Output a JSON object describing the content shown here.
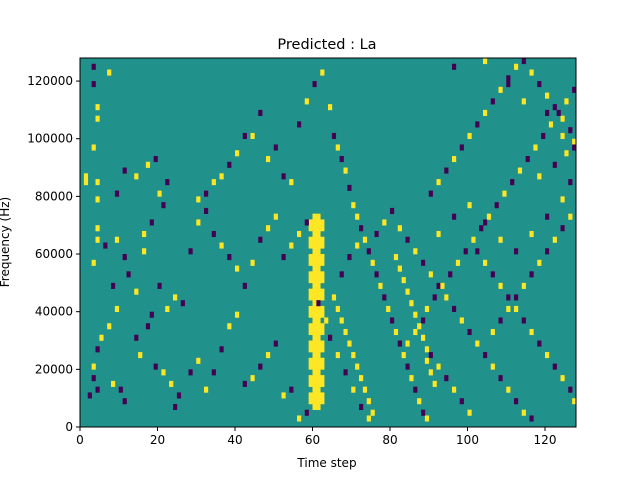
{
  "chart_data": {
    "type": "heatmap",
    "title": "Predicted : La",
    "xlabel": "Time step",
    "ylabel": "Frequency (Hz)",
    "xlim": [
      0,
      128
    ],
    "ylim": [
      0,
      128000
    ],
    "x_ticks": [
      0,
      20,
      40,
      60,
      80,
      100,
      120
    ],
    "y_ticks": [
      0,
      20000,
      40000,
      60000,
      80000,
      100000,
      120000
    ],
    "x_tick_labels": [
      "0",
      "20",
      "40",
      "60",
      "80",
      "100",
      "120"
    ],
    "y_tick_labels": [
      "0",
      "20000",
      "40000",
      "60000",
      "80000",
      "100000",
      "120000"
    ],
    "grid": false,
    "colors": {
      "background": "#21918c",
      "low": "#440154",
      "high": "#fde725"
    },
    "value_levels": [
      -1,
      0,
      1
    ],
    "background_value": 0,
    "row_height_hz": 2000,
    "bright_band": {
      "x_start": 59,
      "x_end": 63,
      "y_min": 6000,
      "y_max": 74000,
      "value": 1
    },
    "cells": [
      [
        3,
        124000,
        -1
      ],
      [
        3,
        118000,
        -1
      ],
      [
        4,
        110000,
        1
      ],
      [
        4,
        106000,
        1
      ],
      [
        7,
        122000,
        1
      ],
      [
        3,
        96000,
        1
      ],
      [
        1,
        86000,
        1
      ],
      [
        1,
        84000,
        1
      ],
      [
        4,
        84000,
        1
      ],
      [
        4,
        78000,
        1
      ],
      [
        9,
        80000,
        -1
      ],
      [
        11,
        88000,
        -1
      ],
      [
        14,
        86000,
        1
      ],
      [
        17,
        90000,
        1
      ],
      [
        19,
        92000,
        -1
      ],
      [
        20,
        80000,
        1
      ],
      [
        18,
        70000,
        -1
      ],
      [
        21,
        76000,
        -1
      ],
      [
        22,
        84000,
        -1
      ],
      [
        4,
        68000,
        1
      ],
      [
        4,
        64000,
        1
      ],
      [
        3,
        56000,
        1
      ],
      [
        6,
        62000,
        -1
      ],
      [
        9,
        64000,
        1
      ],
      [
        11,
        58000,
        -1
      ],
      [
        16,
        66000,
        1
      ],
      [
        16,
        60000,
        1
      ],
      [
        8,
        48000,
        -1
      ],
      [
        12,
        52000,
        -1
      ],
      [
        14,
        46000,
        1
      ],
      [
        20,
        48000,
        -1
      ],
      [
        24,
        44000,
        1
      ],
      [
        26,
        42000,
        -1
      ],
      [
        22,
        40000,
        1
      ],
      [
        9,
        40000,
        1
      ],
      [
        7,
        34000,
        1
      ],
      [
        5,
        30000,
        1
      ],
      [
        4,
        26000,
        -1
      ],
      [
        3,
        20000,
        1
      ],
      [
        3,
        16000,
        -1
      ],
      [
        4,
        12000,
        -1
      ],
      [
        2,
        10000,
        -1
      ],
      [
        8,
        14000,
        1
      ],
      [
        10,
        12000,
        -1
      ],
      [
        11,
        8000,
        -1
      ],
      [
        14,
        30000,
        -1
      ],
      [
        15,
        24000,
        1
      ],
      [
        17,
        34000,
        -1
      ],
      [
        18,
        38000,
        -1
      ],
      [
        19,
        20000,
        -1
      ],
      [
        21,
        18000,
        1
      ],
      [
        23,
        14000,
        1
      ],
      [
        25,
        10000,
        -1
      ],
      [
        24,
        6000,
        -1
      ],
      [
        28,
        18000,
        -1
      ],
      [
        30,
        22000,
        1
      ],
      [
        32,
        12000,
        1
      ],
      [
        34,
        18000,
        -1
      ],
      [
        36,
        26000,
        -1
      ],
      [
        38,
        34000,
        1
      ],
      [
        40,
        38000,
        1
      ],
      [
        42,
        14000,
        -1
      ],
      [
        44,
        16000,
        1
      ],
      [
        46,
        20000,
        -1
      ],
      [
        48,
        24000,
        1
      ],
      [
        50,
        28000,
        -1
      ],
      [
        52,
        10000,
        1
      ],
      [
        54,
        12000,
        -1
      ],
      [
        56,
        2000,
        1
      ],
      [
        58,
        4000,
        -1
      ],
      [
        28,
        60000,
        -1
      ],
      [
        30,
        70000,
        1
      ],
      [
        32,
        74000,
        -1
      ],
      [
        34,
        66000,
        -1
      ],
      [
        36,
        62000,
        1
      ],
      [
        38,
        58000,
        -1
      ],
      [
        40,
        54000,
        1
      ],
      [
        42,
        48000,
        -1
      ],
      [
        44,
        56000,
        1
      ],
      [
        46,
        64000,
        -1
      ],
      [
        48,
        68000,
        1
      ],
      [
        50,
        72000,
        1
      ],
      [
        52,
        58000,
        -1
      ],
      [
        54,
        62000,
        1
      ],
      [
        56,
        66000,
        1
      ],
      [
        58,
        70000,
        -1
      ],
      [
        30,
        78000,
        1
      ],
      [
        32,
        80000,
        -1
      ],
      [
        34,
        84000,
        1
      ],
      [
        36,
        86000,
        1
      ],
      [
        38,
        90000,
        -1
      ],
      [
        40,
        94000,
        1
      ],
      [
        42,
        100000,
        -1
      ],
      [
        44,
        100000,
        1
      ],
      [
        46,
        108000,
        -1
      ],
      [
        48,
        92000,
        1
      ],
      [
        50,
        96000,
        -1
      ],
      [
        52,
        86000,
        -1
      ],
      [
        54,
        84000,
        1
      ],
      [
        56,
        104000,
        -1
      ],
      [
        58,
        112000,
        1
      ],
      [
        60,
        118000,
        -1
      ],
      [
        62,
        122000,
        1
      ],
      [
        64,
        110000,
        1
      ],
      [
        65,
        100000,
        -1
      ],
      [
        66,
        96000,
        1
      ],
      [
        67,
        92000,
        -1
      ],
      [
        68,
        88000,
        1
      ],
      [
        69,
        82000,
        -1
      ],
      [
        70,
        76000,
        1
      ],
      [
        71,
        72000,
        1
      ],
      [
        72,
        68000,
        -1
      ],
      [
        73,
        64000,
        1
      ],
      [
        74,
        60000,
        -1
      ],
      [
        75,
        56000,
        1
      ],
      [
        76,
        52000,
        -1
      ],
      [
        77,
        48000,
        1
      ],
      [
        78,
        44000,
        -1
      ],
      [
        79,
        40000,
        1
      ],
      [
        80,
        36000,
        -1
      ],
      [
        81,
        32000,
        1
      ],
      [
        82,
        28000,
        -1
      ],
      [
        83,
        24000,
        1
      ],
      [
        84,
        20000,
        -1
      ],
      [
        85,
        16000,
        1
      ],
      [
        86,
        12000,
        -1
      ],
      [
        87,
        8000,
        1
      ],
      [
        88,
        4000,
        -1
      ],
      [
        89,
        2000,
        1
      ],
      [
        60,
        48000,
        1
      ],
      [
        61,
        42000,
        -1
      ],
      [
        63,
        36000,
        1
      ],
      [
        64,
        30000,
        -1
      ],
      [
        66,
        24000,
        1
      ],
      [
        68,
        18000,
        -1
      ],
      [
        70,
        12000,
        1
      ],
      [
        72,
        6000,
        -1
      ],
      [
        74,
        2000,
        1
      ],
      [
        67,
        52000,
        -1
      ],
      [
        69,
        58000,
        -1
      ],
      [
        71,
        62000,
        1
      ],
      [
        76,
        66000,
        -1
      ],
      [
        78,
        70000,
        1
      ],
      [
        80,
        74000,
        -1
      ],
      [
        82,
        68000,
        1
      ],
      [
        84,
        64000,
        -1
      ],
      [
        86,
        60000,
        1
      ],
      [
        88,
        56000,
        -1
      ],
      [
        90,
        52000,
        1
      ],
      [
        92,
        48000,
        -1
      ],
      [
        94,
        44000,
        1
      ],
      [
        96,
        40000,
        -1
      ],
      [
        98,
        36000,
        1
      ],
      [
        100,
        32000,
        -1
      ],
      [
        102,
        28000,
        1
      ],
      [
        104,
        24000,
        -1
      ],
      [
        106,
        20000,
        1
      ],
      [
        108,
        16000,
        -1
      ],
      [
        110,
        12000,
        1
      ],
      [
        112,
        8000,
        -1
      ],
      [
        114,
        4000,
        1
      ],
      [
        116,
        2000,
        -1
      ],
      [
        90,
        24000,
        -1
      ],
      [
        92,
        20000,
        1
      ],
      [
        94,
        16000,
        -1
      ],
      [
        96,
        12000,
        1
      ],
      [
        98,
        8000,
        -1
      ],
      [
        100,
        4000,
        1
      ],
      [
        102,
        60000,
        -1
      ],
      [
        104,
        56000,
        1
      ],
      [
        106,
        52000,
        -1
      ],
      [
        108,
        48000,
        1
      ],
      [
        110,
        44000,
        -1
      ],
      [
        112,
        40000,
        1
      ],
      [
        114,
        36000,
        -1
      ],
      [
        116,
        32000,
        1
      ],
      [
        118,
        28000,
        -1
      ],
      [
        120,
        24000,
        1
      ],
      [
        122,
        20000,
        -1
      ],
      [
        124,
        16000,
        1
      ],
      [
        126,
        12000,
        -1
      ],
      [
        127,
        8000,
        1
      ],
      [
        90,
        80000,
        -1
      ],
      [
        92,
        84000,
        1
      ],
      [
        94,
        88000,
        -1
      ],
      [
        96,
        92000,
        1
      ],
      [
        98,
        96000,
        -1
      ],
      [
        100,
        100000,
        1
      ],
      [
        102,
        104000,
        -1
      ],
      [
        104,
        108000,
        1
      ],
      [
        106,
        112000,
        -1
      ],
      [
        108,
        116000,
        1
      ],
      [
        110,
        120000,
        -1
      ],
      [
        112,
        124000,
        1
      ],
      [
        114,
        126000,
        -1
      ],
      [
        116,
        122000,
        1
      ],
      [
        118,
        118000,
        -1
      ],
      [
        120,
        114000,
        1
      ],
      [
        122,
        110000,
        -1
      ],
      [
        124,
        106000,
        1
      ],
      [
        126,
        102000,
        -1
      ],
      [
        127,
        98000,
        1
      ],
      [
        92,
        66000,
        1
      ],
      [
        96,
        72000,
        -1
      ],
      [
        100,
        76000,
        1
      ],
      [
        104,
        70000,
        -1
      ],
      [
        108,
        64000,
        1
      ],
      [
        112,
        60000,
        -1
      ],
      [
        116,
        66000,
        1
      ],
      [
        120,
        72000,
        -1
      ],
      [
        124,
        78000,
        1
      ],
      [
        126,
        84000,
        -1
      ],
      [
        118,
        86000,
        1
      ],
      [
        122,
        90000,
        -1
      ],
      [
        125,
        94000,
        1
      ],
      [
        96,
        124000,
        -1
      ],
      [
        104,
        126000,
        1
      ],
      [
        110,
        118000,
        -1
      ],
      [
        114,
        112000,
        1
      ],
      [
        120,
        108000,
        -1
      ],
      [
        124,
        100000,
        1
      ],
      [
        127,
        96000,
        -1
      ],
      [
        106,
        32000,
        1
      ],
      [
        108,
        36000,
        -1
      ],
      [
        110,
        40000,
        1
      ],
      [
        112,
        44000,
        -1
      ],
      [
        114,
        48000,
        1
      ],
      [
        116,
        52000,
        -1
      ],
      [
        118,
        56000,
        1
      ],
      [
        120,
        60000,
        -1
      ],
      [
        122,
        64000,
        1
      ],
      [
        124,
        68000,
        -1
      ],
      [
        126,
        72000,
        1
      ],
      [
        84,
        28000,
        1
      ],
      [
        86,
        32000,
        1
      ],
      [
        88,
        36000,
        -1
      ],
      [
        89,
        40000,
        1
      ],
      [
        91,
        44000,
        -1
      ],
      [
        93,
        48000,
        1
      ],
      [
        95,
        52000,
        -1
      ],
      [
        97,
        56000,
        1
      ],
      [
        99,
        60000,
        -1
      ],
      [
        101,
        64000,
        1
      ],
      [
        103,
        68000,
        -1
      ],
      [
        105,
        72000,
        1
      ],
      [
        107,
        76000,
        -1
      ],
      [
        109,
        80000,
        1
      ],
      [
        111,
        84000,
        -1
      ],
      [
        113,
        88000,
        1
      ],
      [
        115,
        92000,
        -1
      ],
      [
        117,
        96000,
        1
      ],
      [
        119,
        100000,
        -1
      ],
      [
        121,
        104000,
        1
      ],
      [
        123,
        108000,
        -1
      ],
      [
        125,
        112000,
        1
      ],
      [
        127,
        116000,
        -1
      ],
      [
        89,
        26000,
        1
      ],
      [
        89,
        22000,
        1
      ],
      [
        90,
        18000,
        1
      ],
      [
        91,
        14000,
        1
      ],
      [
        88,
        30000,
        1
      ],
      [
        87,
        34000,
        1
      ],
      [
        86,
        38000,
        1
      ],
      [
        85,
        42000,
        1
      ],
      [
        84,
        46000,
        1
      ],
      [
        83,
        50000,
        1
      ],
      [
        82,
        54000,
        1
      ],
      [
        81,
        58000,
        1
      ],
      [
        65,
        44000,
        1
      ],
      [
        66,
        40000,
        1
      ],
      [
        67,
        36000,
        1
      ],
      [
        68,
        32000,
        1
      ],
      [
        69,
        28000,
        1
      ],
      [
        70,
        24000,
        1
      ],
      [
        71,
        20000,
        1
      ],
      [
        72,
        16000,
        1
      ],
      [
        73,
        12000,
        1
      ],
      [
        74,
        8000,
        1
      ],
      [
        75,
        4000,
        1
      ]
    ]
  }
}
